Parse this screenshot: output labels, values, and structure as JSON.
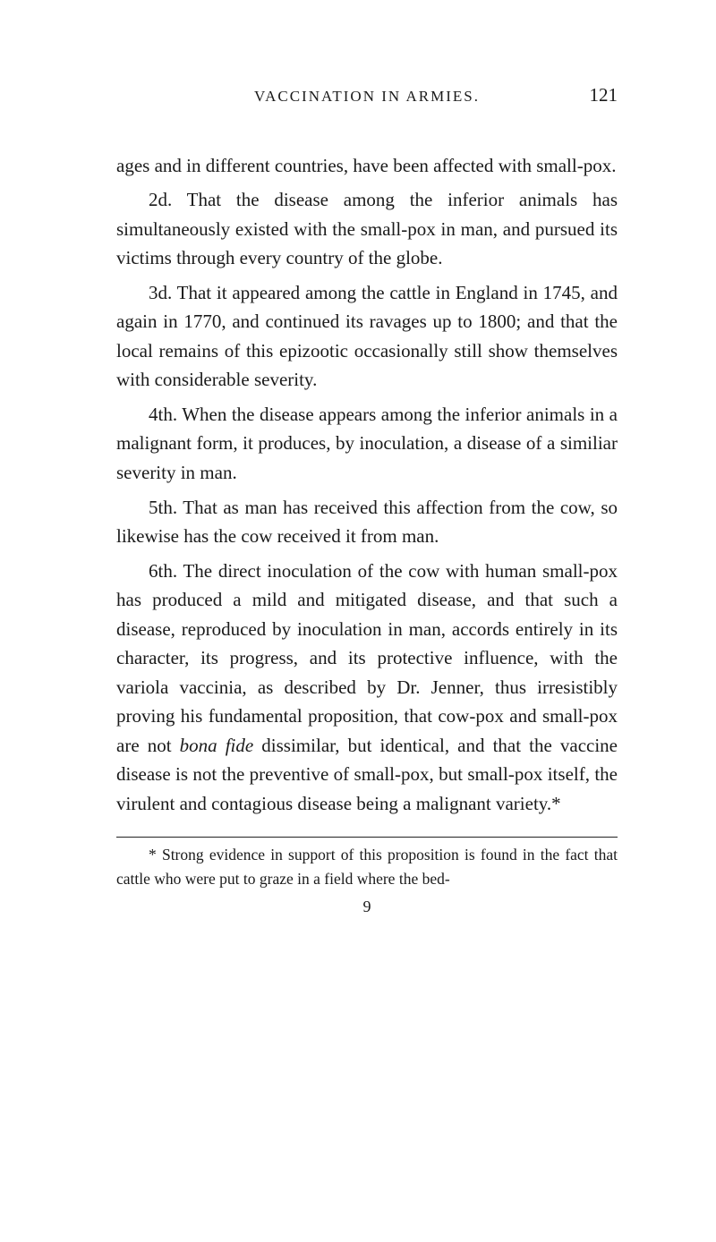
{
  "header": {
    "running_head": "VACCINATION IN ARMIES.",
    "page_number": "121"
  },
  "paragraphs": {
    "p1": "ages and in different countries, have been affected with small-pox.",
    "p2": "2d. That the disease among the inferior animals has simultaneously existed with the small-pox in man, and pursued its victims through every country of the globe.",
    "p3": "3d. That it appeared among the cattle in England in 1745, and again in 1770, and continued its ravages up to 1800; and that the local remains of this epi­zootic occasionally still show themselves with con­siderable severity.",
    "p4": "4th. When the disease appears among the inferior animals in a malignant form, it produces, by inocula­tion, a disease of a similiar severity in man.",
    "p5": "5th. That as man has received this affection from the cow, so likewise has the cow received it from man.",
    "p6_a": "6th. The direct inoculation of the cow with human small-pox has produced a mild and mitigated disease, and that such a disease, reproduced by inoculation in man, accords entirely in its character, its progress, and its protective influence, with the variola vaccinia, as described by Dr. Jenner, thus irresistibly proving his fundamental proposition, that cow-pox and small-pox are not ",
    "p6_italic": "bona fide",
    "p6_b": " dissimilar, but identical, and that the vaccine disease is not the preventive of small-pox, but small-pox itself, the virulent and contagious disease being a malignant variety.*"
  },
  "footnote": {
    "text": "* Strong evidence in support of this proposition is found in the fact that cattle who were put to graze in a field where the bed-"
  },
  "signature": "9"
}
